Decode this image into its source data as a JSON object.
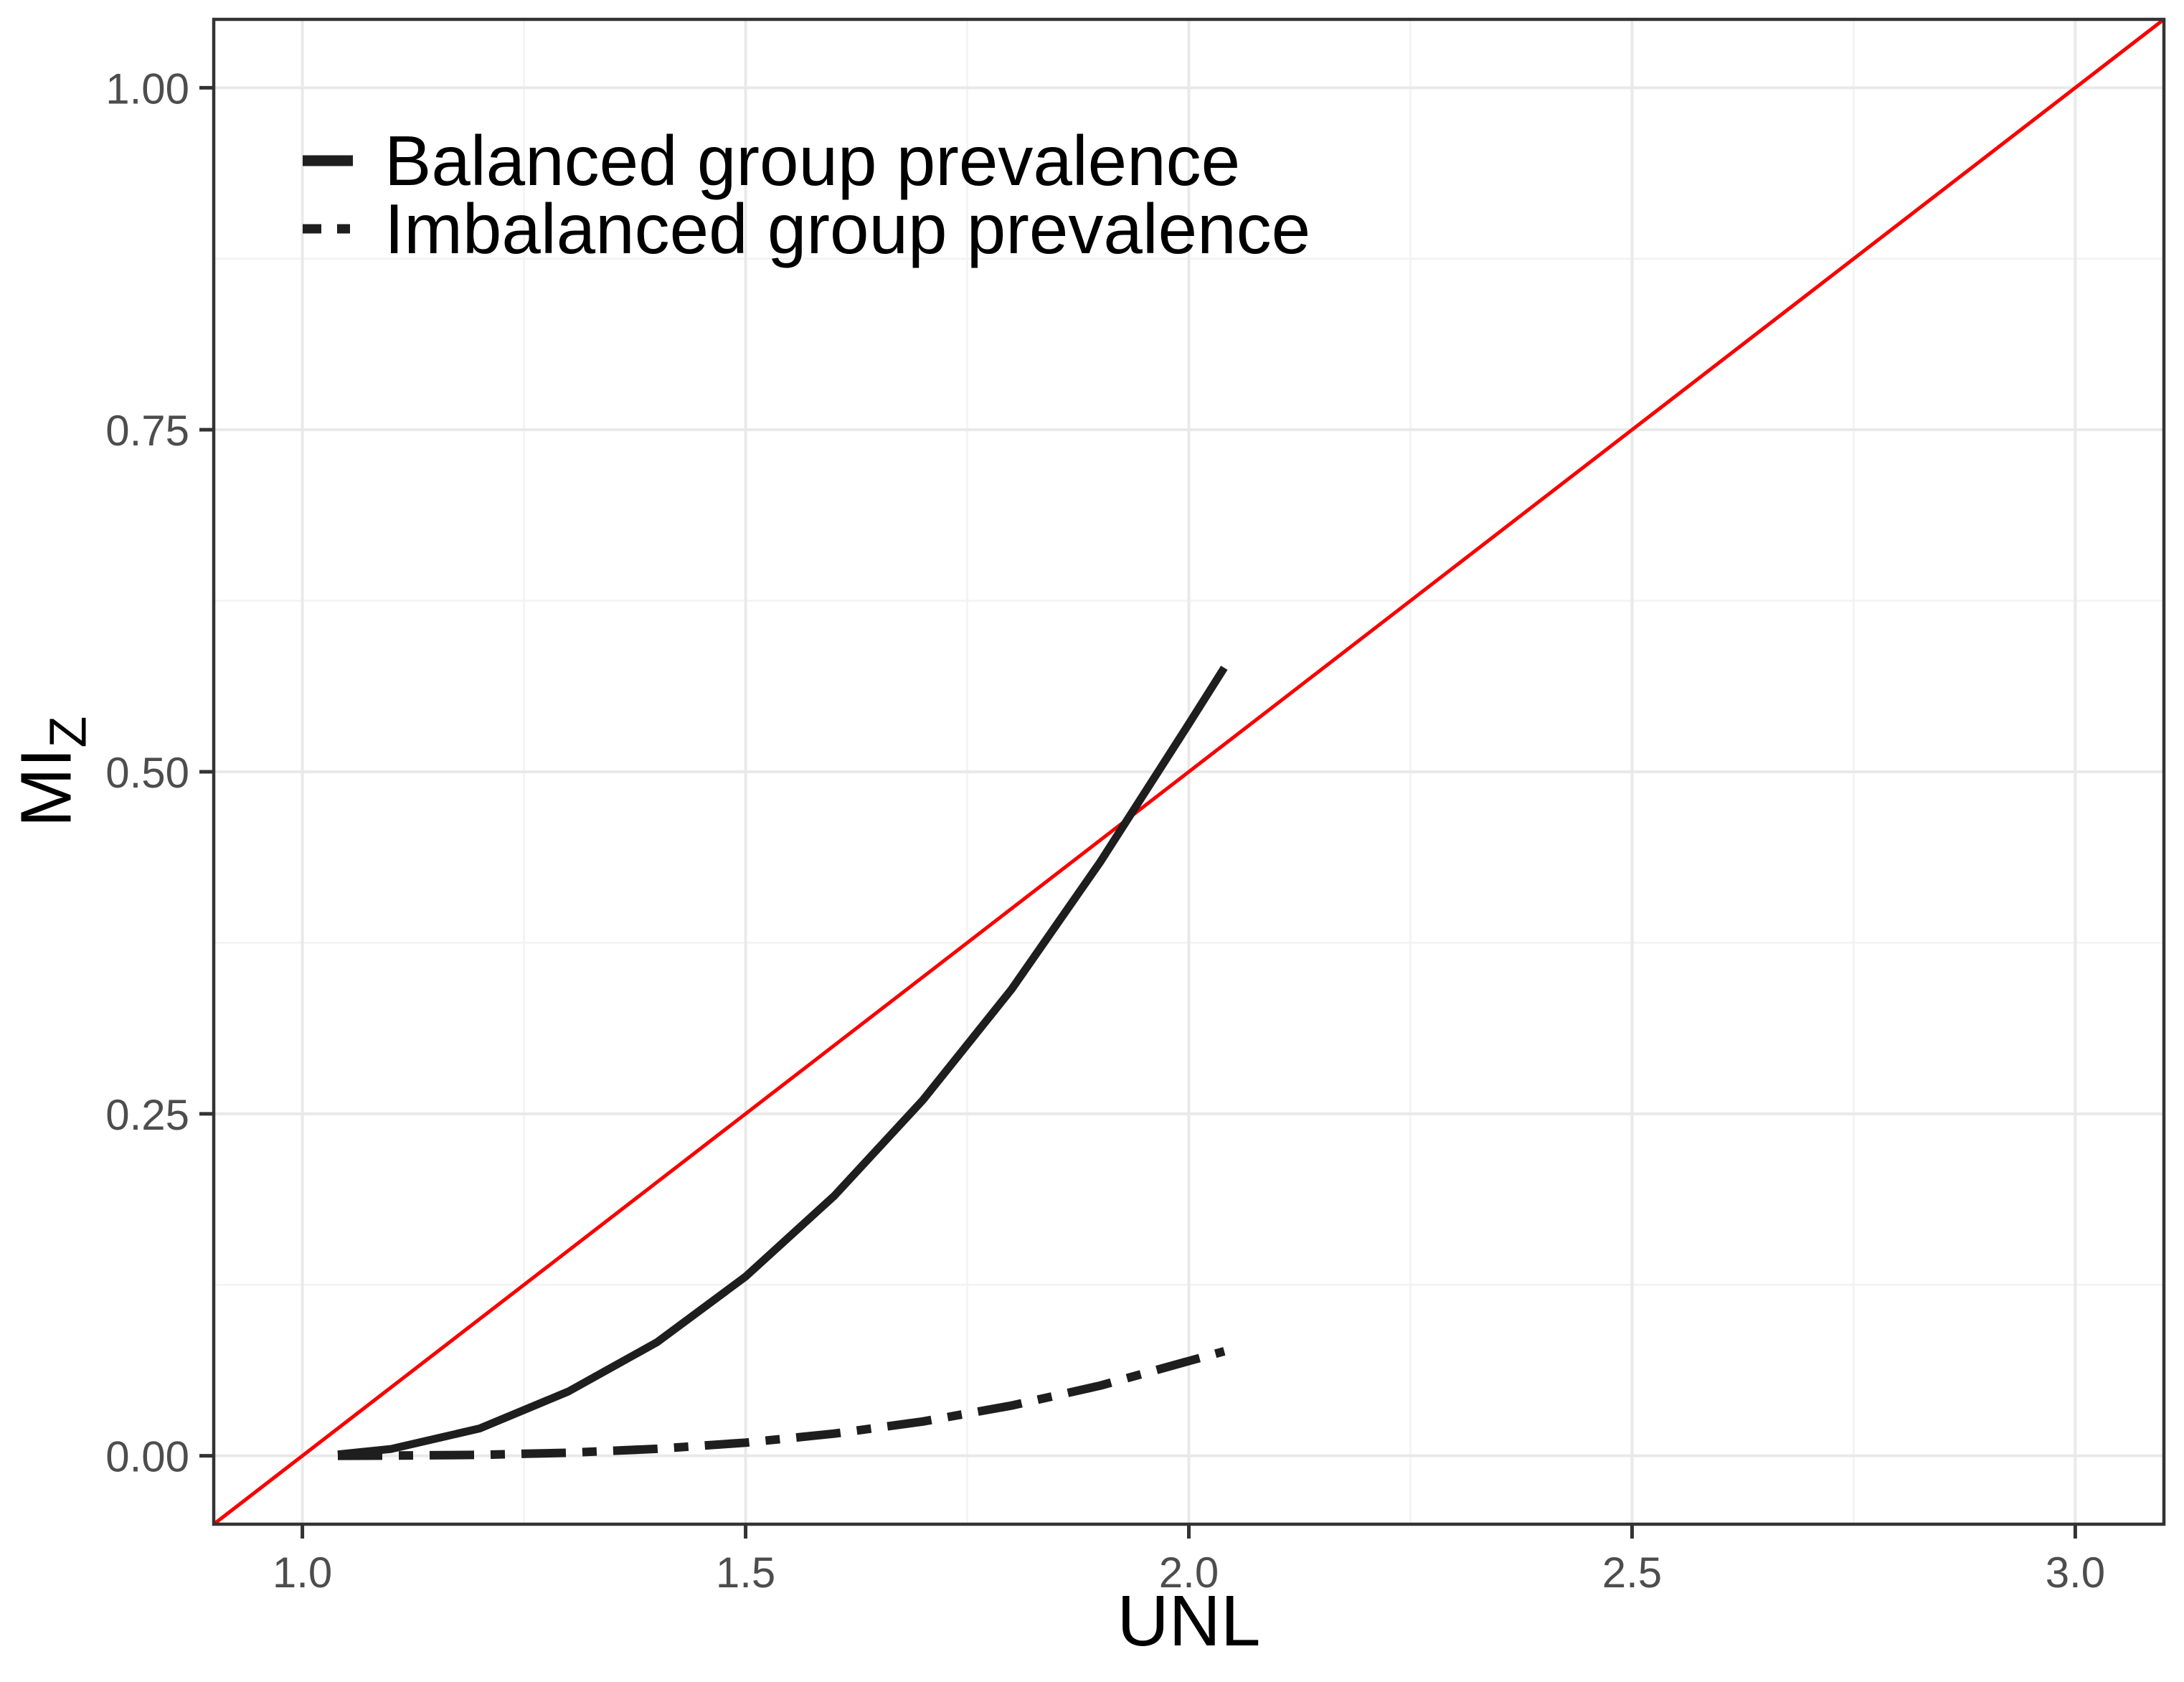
{
  "chart_data": {
    "type": "line",
    "xlabel": "UNL",
    "ylabel_main": "MI",
    "ylabel_sub": "Z",
    "xlim": [
      0.9,
      3.1
    ],
    "ylim": [
      -0.05,
      1.05
    ],
    "grid": "on",
    "legend_position": "top-left-inside",
    "x_ticks": {
      "values": [
        1.0,
        1.5,
        2.0,
        2.5,
        3.0
      ],
      "labels": [
        "1.0",
        "1.5",
        "2.0",
        "2.5",
        "3.0"
      ],
      "minor": [
        1.25,
        1.75,
        2.25,
        2.75
      ]
    },
    "y_ticks": {
      "values": [
        0.0,
        0.25,
        0.5,
        0.75,
        1.0
      ],
      "labels": [
        "0.00",
        "0.25",
        "0.50",
        "0.75",
        "1.00"
      ],
      "minor": [
        0.125,
        0.375,
        0.625,
        0.875
      ]
    },
    "series": [
      {
        "name": "Balanced group prevalence",
        "linetype": "solid",
        "color": "#1E1E1E",
        "points": [
          [
            1.04,
            0.001
          ],
          [
            1.1,
            0.005
          ],
          [
            1.2,
            0.02
          ],
          [
            1.3,
            0.047
          ],
          [
            1.4,
            0.083
          ],
          [
            1.5,
            0.131
          ],
          [
            1.6,
            0.19
          ],
          [
            1.7,
            0.26
          ],
          [
            1.8,
            0.341
          ],
          [
            1.9,
            0.434
          ],
          [
            2.0,
            0.535
          ],
          [
            2.04,
            0.576
          ]
        ]
      },
      {
        "name": "Imbalanced group prevalence",
        "linetype": "dotdash",
        "color": "#1E1E1E",
        "points": [
          [
            1.04,
            0.0
          ],
          [
            1.1,
            0.0001
          ],
          [
            1.2,
            0.0007
          ],
          [
            1.3,
            0.0022
          ],
          [
            1.4,
            0.0051
          ],
          [
            1.5,
            0.0096
          ],
          [
            1.6,
            0.0162
          ],
          [
            1.7,
            0.0251
          ],
          [
            1.8,
            0.0367
          ],
          [
            1.9,
            0.0513
          ],
          [
            2.0,
            0.0693
          ],
          [
            2.04,
            0.0764
          ]
        ]
      }
    ],
    "reference_line": {
      "slope": 0.5,
      "intercept": -0.5,
      "color": "#F80000"
    },
    "style": {
      "background": "#FFFFFF",
      "panel_border": "#333333",
      "major_grid": "#E9E9E9",
      "minor_grid": "#F2F2F2",
      "tick_mark": "#333333",
      "tick_label_color": "#4D4D4D",
      "text_color": "#000000"
    }
  }
}
